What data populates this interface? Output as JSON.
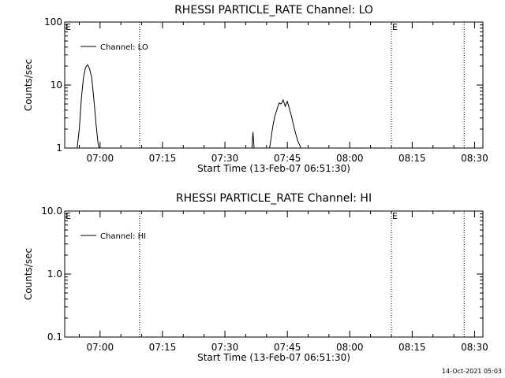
{
  "chart_data": [
    {
      "type": "line",
      "title": "RHESSI PARTICLE_RATE Channel: LO",
      "xlabel": "Start Time (13-Feb-07 06:51:30)",
      "ylabel": "Counts/sec",
      "yscale": "log",
      "ylim": [
        1,
        100
      ],
      "xlim": [
        "06:51:30",
        "08:32:00"
      ],
      "xticks": [
        "07:00",
        "07:15",
        "07:30",
        "07:45",
        "08:00",
        "08:15",
        "08:30"
      ],
      "yticks": [
        "1",
        "10",
        "100"
      ],
      "grid": false,
      "legend": {
        "position": "top-left",
        "entries": [
          "Channel: LO"
        ]
      },
      "event_markers": [
        {
          "time": "06:51:30",
          "label": "E"
        },
        {
          "time": "07:09:30",
          "label": ""
        },
        {
          "time": "08:10:00",
          "label": "E"
        },
        {
          "time": "08:27:30",
          "label": ""
        }
      ],
      "series": [
        {
          "name": "Channel: LO",
          "x": [
            "06:54:30",
            "06:55:00",
            "06:55:30",
            "06:56:00",
            "06:56:30",
            "06:57:00",
            "06:57:30",
            "06:58:00",
            "06:58:30",
            "06:59:00",
            "06:59:30",
            "06:59:45",
            "07:36:15",
            "07:36:30",
            "07:36:45",
            "07:37:00",
            "07:37:15",
            "07:40:45",
            "07:41:00",
            "07:41:30",
            "07:42:00",
            "07:42:30",
            "07:43:00",
            "07:43:30",
            "07:44:00",
            "07:44:30",
            "07:45:00",
            "07:45:30",
            "07:46:00",
            "07:46:30",
            "07:47:00",
            "07:47:30",
            "07:48:00",
            "07:48:15"
          ],
          "y": [
            1.0,
            2.0,
            6.0,
            13.0,
            19.0,
            21.0,
            18.0,
            13.0,
            6.0,
            2.5,
            1.2,
            1.0,
            null,
            1.0,
            1.8,
            1.0,
            null,
            1.0,
            1.3,
            2.2,
            3.2,
            4.1,
            5.2,
            5.0,
            5.8,
            4.6,
            5.5,
            4.2,
            3.2,
            2.3,
            1.7,
            1.3,
            1.1,
            1.0
          ]
        }
      ]
    },
    {
      "type": "line",
      "title": "RHESSI PARTICLE_RATE Channel: HI",
      "xlabel": "Start Time (13-Feb-07 06:51:30)",
      "ylabel": "Counts/sec",
      "yscale": "log",
      "ylim": [
        0.1,
        10
      ],
      "xlim": [
        "06:51:30",
        "08:32:00"
      ],
      "xticks": [
        "07:00",
        "07:15",
        "07:30",
        "07:45",
        "08:00",
        "08:15",
        "08:30"
      ],
      "yticks": [
        "0.1",
        "1.0",
        "10.0"
      ],
      "grid": false,
      "legend": {
        "position": "top-left",
        "entries": [
          "Channel: HI"
        ]
      },
      "event_markers": [
        {
          "time": "06:51:30",
          "label": "E"
        },
        {
          "time": "07:09:30",
          "label": ""
        },
        {
          "time": "08:10:00",
          "label": "E"
        },
        {
          "time": "08:27:30",
          "label": ""
        }
      ],
      "series": [
        {
          "name": "Channel: HI",
          "x": [],
          "y": []
        }
      ]
    }
  ],
  "footer": {
    "timestamp": "14-Oct-2021 05:03"
  }
}
